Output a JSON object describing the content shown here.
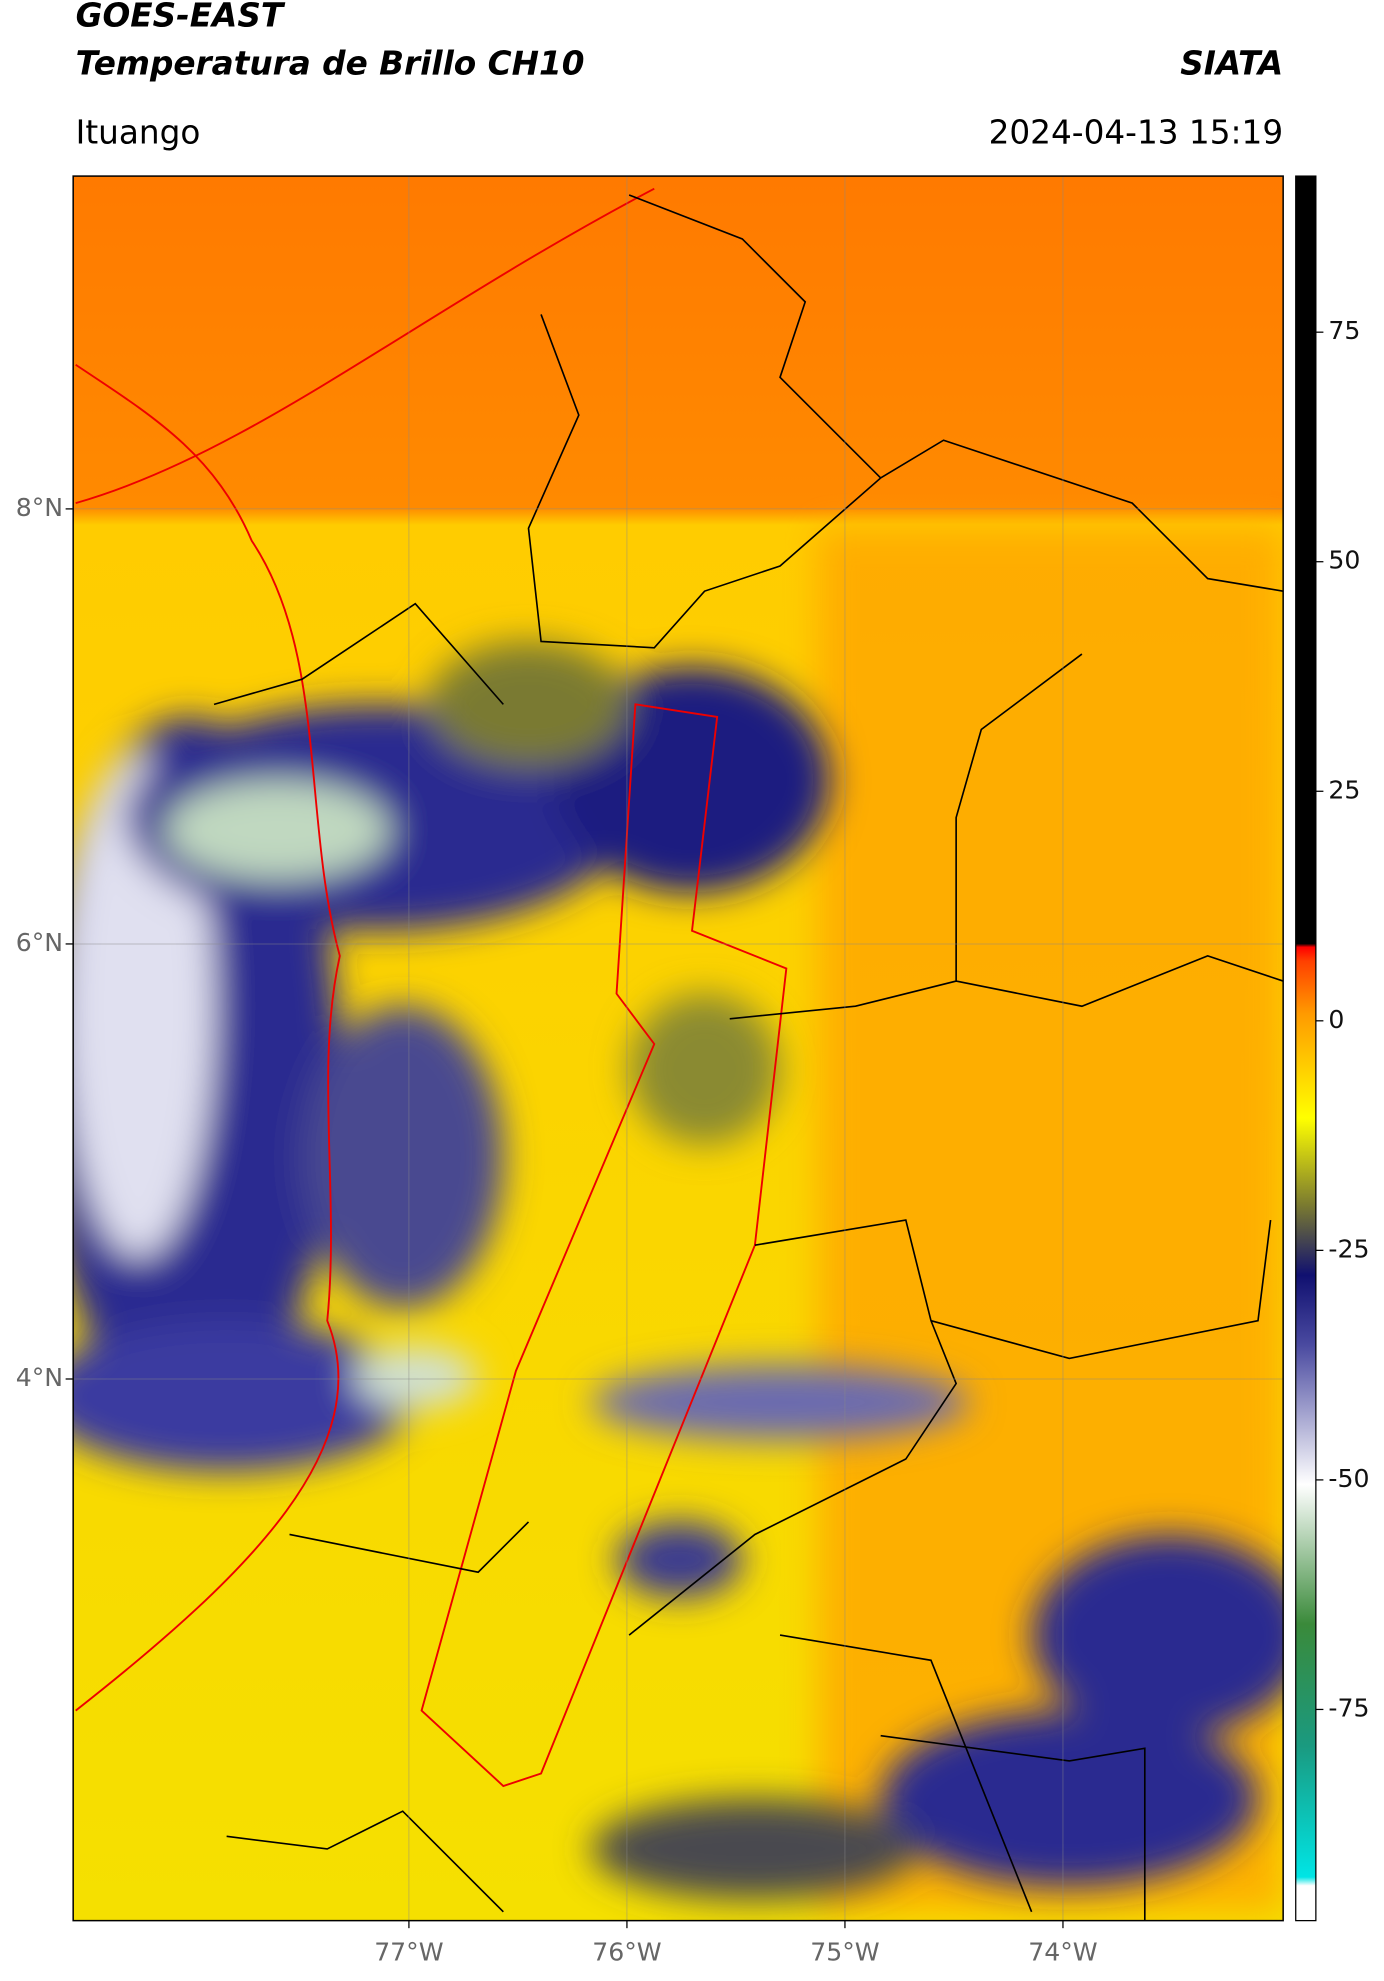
{
  "header": {
    "title": "GOES-EAST",
    "subtitle": "Temperatura de Brillo CH10",
    "source": "SIATA",
    "location": "Ituango",
    "datetime": "2024-04-13 15:19"
  },
  "chart_data": {
    "type": "map",
    "xlim": [
      -78.54,
      -72.99
    ],
    "ylim": [
      1.51,
      9.53
    ],
    "xticks": [
      {
        "value": -77,
        "label": "77°W"
      },
      {
        "value": -76,
        "label": "76°W"
      },
      {
        "value": -75,
        "label": "75°W"
      },
      {
        "value": -74,
        "label": "74°W"
      }
    ],
    "yticks": [
      {
        "value": 4,
        "label": "4°N"
      },
      {
        "value": 6,
        "label": "6°N"
      },
      {
        "value": 8,
        "label": "8°N"
      }
    ],
    "grid": true,
    "colorbar": {
      "lim": [
        -98,
        92
      ],
      "ticks": [
        -75,
        -50,
        -25,
        0,
        25,
        50,
        75
      ]
    }
  }
}
